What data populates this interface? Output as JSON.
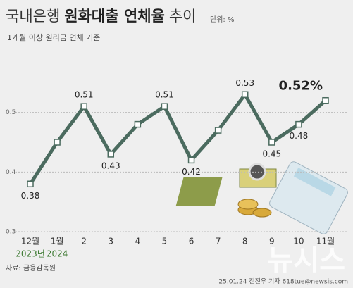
{
  "chart_data": {
    "type": "line",
    "title_parts": [
      "국내은행",
      "원화대출 연체율",
      "추이"
    ],
    "unit": "단위: %",
    "subtitle": "1개월 이상 원리금 연체 기준",
    "categories": [
      "12월",
      "1월",
      "2",
      "3",
      "4",
      "5",
      "6",
      "7",
      "8",
      "9",
      "10",
      "11월"
    ],
    "year_labels": [
      "2023년",
      "2024"
    ],
    "values": [
      0.38,
      0.45,
      0.51,
      0.43,
      0.48,
      0.51,
      0.42,
      0.47,
      0.53,
      0.45,
      0.48,
      0.52
    ],
    "value_labels": [
      "0.38",
      null,
      "0.51",
      "0.43",
      null,
      "0.51",
      "0.42",
      null,
      "0.53",
      "0.45",
      "0.48",
      "0.52%"
    ],
    "color": "#4b6b5f",
    "ylim": [
      0.3,
      0.6
    ],
    "yticks": [
      0.3,
      0.4,
      0.5
    ],
    "grid": true,
    "source": "자료: 금융감독원",
    "watermark": "뉴시스",
    "credit": "25.01.24 전진우 기자 618tue@newsis.com"
  }
}
